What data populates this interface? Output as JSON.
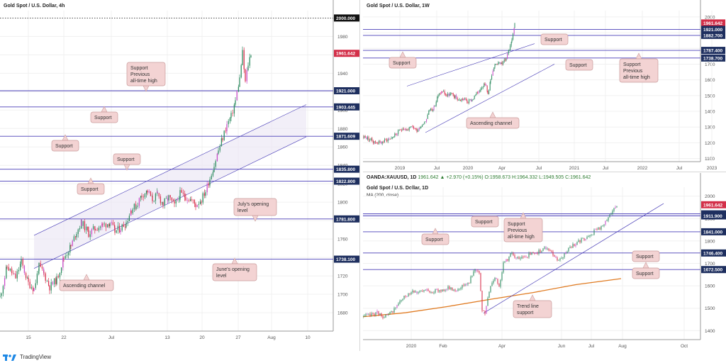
{
  "footer": {
    "brand": "TradingView"
  },
  "colors": {
    "level": "#4a3fb8",
    "channel": "#4a3fb8",
    "up": "#2f8c61",
    "down": "#d9324f",
    "purple": "#c94fc9",
    "ma": "#e07b22",
    "note_fill": "#f3d3d3",
    "note_border": "#c99a9a",
    "price_label": "#1e2f5f",
    "last_label": "#d32f49"
  },
  "chart_data": [
    {
      "type": "candlestick",
      "title": "Gold Spot / U.S. Dollar, 4h",
      "ylim": [
        1660,
        2008
      ],
      "y_ticks": [
        1680,
        1700,
        1720,
        1740,
        1760,
        1780,
        1800,
        1820,
        1840,
        1860,
        1880,
        1900,
        1920,
        1940,
        1960,
        1980
      ],
      "x_ticks": [
        "15",
        "22",
        "Jul",
        "13",
        "20",
        "27",
        "Aug",
        "10"
      ],
      "last_price": "1961.642",
      "levels": [
        "2000.000",
        "1961.642",
        "1921.000",
        "1903.445",
        "1871.609",
        "1835.800",
        "1822.800",
        "1781.800",
        "1738.100"
      ],
      "annotations": [
        "Support",
        "Previous",
        "all-time high",
        "Support",
        "Support",
        "Support",
        "Support",
        "July's opening",
        "level",
        "June's opening",
        "level",
        "Ascending channel"
      ],
      "path": [
        [
          0,
          1697
        ],
        [
          10,
          1730
        ],
        [
          22,
          1718
        ],
        [
          30,
          1735
        ],
        [
          40,
          1712
        ],
        [
          48,
          1706
        ],
        [
          55,
          1730
        ],
        [
          62,
          1722
        ],
        [
          70,
          1708
        ],
        [
          80,
          1716
        ],
        [
          90,
          1740
        ],
        [
          100,
          1752
        ],
        [
          108,
          1768
        ],
        [
          115,
          1778
        ],
        [
          125,
          1766
        ],
        [
          135,
          1772
        ],
        [
          145,
          1775
        ],
        [
          155,
          1778
        ],
        [
          162,
          1768
        ],
        [
          170,
          1772
        ],
        [
          178,
          1778
        ],
        [
          185,
          1792
        ],
        [
          192,
          1796
        ],
        [
          200,
          1808
        ],
        [
          208,
          1812
        ],
        [
          215,
          1803
        ],
        [
          222,
          1808
        ],
        [
          230,
          1798
        ],
        [
          238,
          1805
        ],
        [
          246,
          1796
        ],
        [
          254,
          1809
        ],
        [
          262,
          1806
        ],
        [
          270,
          1802
        ],
        [
          276,
          1797
        ],
        [
          284,
          1803
        ],
        [
          290,
          1812
        ],
        [
          296,
          1826
        ],
        [
          302,
          1840
        ],
        [
          308,
          1856
        ],
        [
          314,
          1870
        ],
        [
          320,
          1884
        ],
        [
          326,
          1893
        ],
        [
          332,
          1910
        ],
        [
          338,
          1934
        ],
        [
          342,
          1962
        ],
        [
          346,
          1930
        ],
        [
          350,
          1950
        ],
        [
          354,
          1962
        ]
      ]
    },
    {
      "type": "candlestick",
      "title": "Gold Spot / U.S. Dollar, 1W",
      "ylim": [
        1080,
        2040
      ],
      "y_ticks": [
        1100,
        1200,
        1300,
        1400,
        1500,
        1600,
        1700,
        1800,
        1900,
        2000
      ],
      "x_ticks": [
        "2019",
        "Jul",
        "2020",
        "Apr",
        "Jul",
        "2021",
        "Jul",
        "2022",
        "Jul",
        "2023"
      ],
      "last_price": "1961.642",
      "levels": [
        "1961.642",
        "1921.000",
        "1882.700",
        "1787.400",
        "1738.700"
      ],
      "annotations": [
        "Support",
        "Support",
        "Support",
        "Support",
        "Previous",
        "all-time high",
        "Ascending channel"
      ],
      "path": [
        [
          0,
          1240
        ],
        [
          8,
          1225
        ],
        [
          16,
          1205
        ],
        [
          24,
          1200
        ],
        [
          32,
          1215
        ],
        [
          40,
          1232
        ],
        [
          48,
          1260
        ],
        [
          56,
          1295
        ],
        [
          62,
          1282
        ],
        [
          70,
          1300
        ],
        [
          76,
          1280
        ],
        [
          82,
          1310
        ],
        [
          88,
          1340
        ],
        [
          94,
          1410
        ],
        [
          100,
          1420
        ],
        [
          106,
          1500
        ],
        [
          112,
          1530
        ],
        [
          118,
          1500
        ],
        [
          124,
          1510
        ],
        [
          130,
          1490
        ],
        [
          136,
          1470
        ],
        [
          142,
          1480
        ],
        [
          148,
          1460
        ],
        [
          154,
          1475
        ],
        [
          160,
          1510
        ],
        [
          166,
          1550
        ],
        [
          172,
          1580
        ],
        [
          176,
          1510
        ],
        [
          180,
          1600
        ],
        [
          186,
          1690
        ],
        [
          192,
          1720
        ],
        [
          196,
          1700
        ],
        [
          202,
          1740
        ],
        [
          206,
          1800
        ],
        [
          210,
          1860
        ],
        [
          214,
          1962
        ]
      ]
    },
    {
      "type": "candlestick",
      "title": "OANDA:XAUUSD, 1D",
      "ohlc": "1961.642 ▲ +2.970 (+0.15%) O:1958.673 H:1964.332 L:1949.505 C:1961.642",
      "subtitle": "Gold Spot / U.S. Dollar, 1D",
      "indicator": "MA (200, close)",
      "ylim": [
        1360,
        2040
      ],
      "y_ticks": [
        1400,
        1500,
        1600,
        1700,
        1800,
        1900,
        2000
      ],
      "x_ticks": [
        "2020",
        "Feb",
        "Apr",
        "Jun",
        "Jul",
        "Aug",
        "Oct"
      ],
      "last_price": "1961.642",
      "levels": [
        "1961.642",
        "1921.000",
        "1911.900",
        "1841.000",
        "1746.400",
        "1672.500"
      ],
      "annotations": [
        "Support",
        "Support",
        "Previous",
        "all-time high",
        "Support",
        "Support",
        "Support",
        "Trend line",
        "support"
      ],
      "path": [
        [
          0,
          1462
        ],
        [
          10,
          1470
        ],
        [
          20,
          1480
        ],
        [
          30,
          1460
        ],
        [
          40,
          1480
        ],
        [
          50,
          1520
        ],
        [
          60,
          1555
        ],
        [
          70,
          1580
        ],
        [
          80,
          1570
        ],
        [
          90,
          1580
        ],
        [
          100,
          1575
        ],
        [
          110,
          1580
        ],
        [
          120,
          1590
        ],
        [
          130,
          1580
        ],
        [
          140,
          1600
        ],
        [
          150,
          1620
        ],
        [
          158,
          1680
        ],
        [
          164,
          1650
        ],
        [
          168,
          1490
        ],
        [
          172,
          1478
        ],
        [
          176,
          1540
        ],
        [
          180,
          1600
        ],
        [
          186,
          1640
        ],
        [
          192,
          1600
        ],
        [
          198,
          1700
        ],
        [
          204,
          1720
        ],
        [
          210,
          1750
        ],
        [
          216,
          1720
        ],
        [
          222,
          1720
        ],
        [
          228,
          1730
        ],
        [
          236,
          1740
        ],
        [
          244,
          1745
        ],
        [
          252,
          1760
        ],
        [
          260,
          1770
        ],
        [
          268,
          1740
        ],
        [
          276,
          1710
        ],
        [
          282,
          1730
        ],
        [
          288,
          1760
        ],
        [
          296,
          1780
        ],
        [
          304,
          1800
        ],
        [
          312,
          1810
        ],
        [
          320,
          1820
        ],
        [
          328,
          1850
        ],
        [
          336,
          1860
        ],
        [
          344,
          1890
        ],
        [
          352,
          1940
        ],
        [
          358,
          1962
        ]
      ]
    }
  ]
}
